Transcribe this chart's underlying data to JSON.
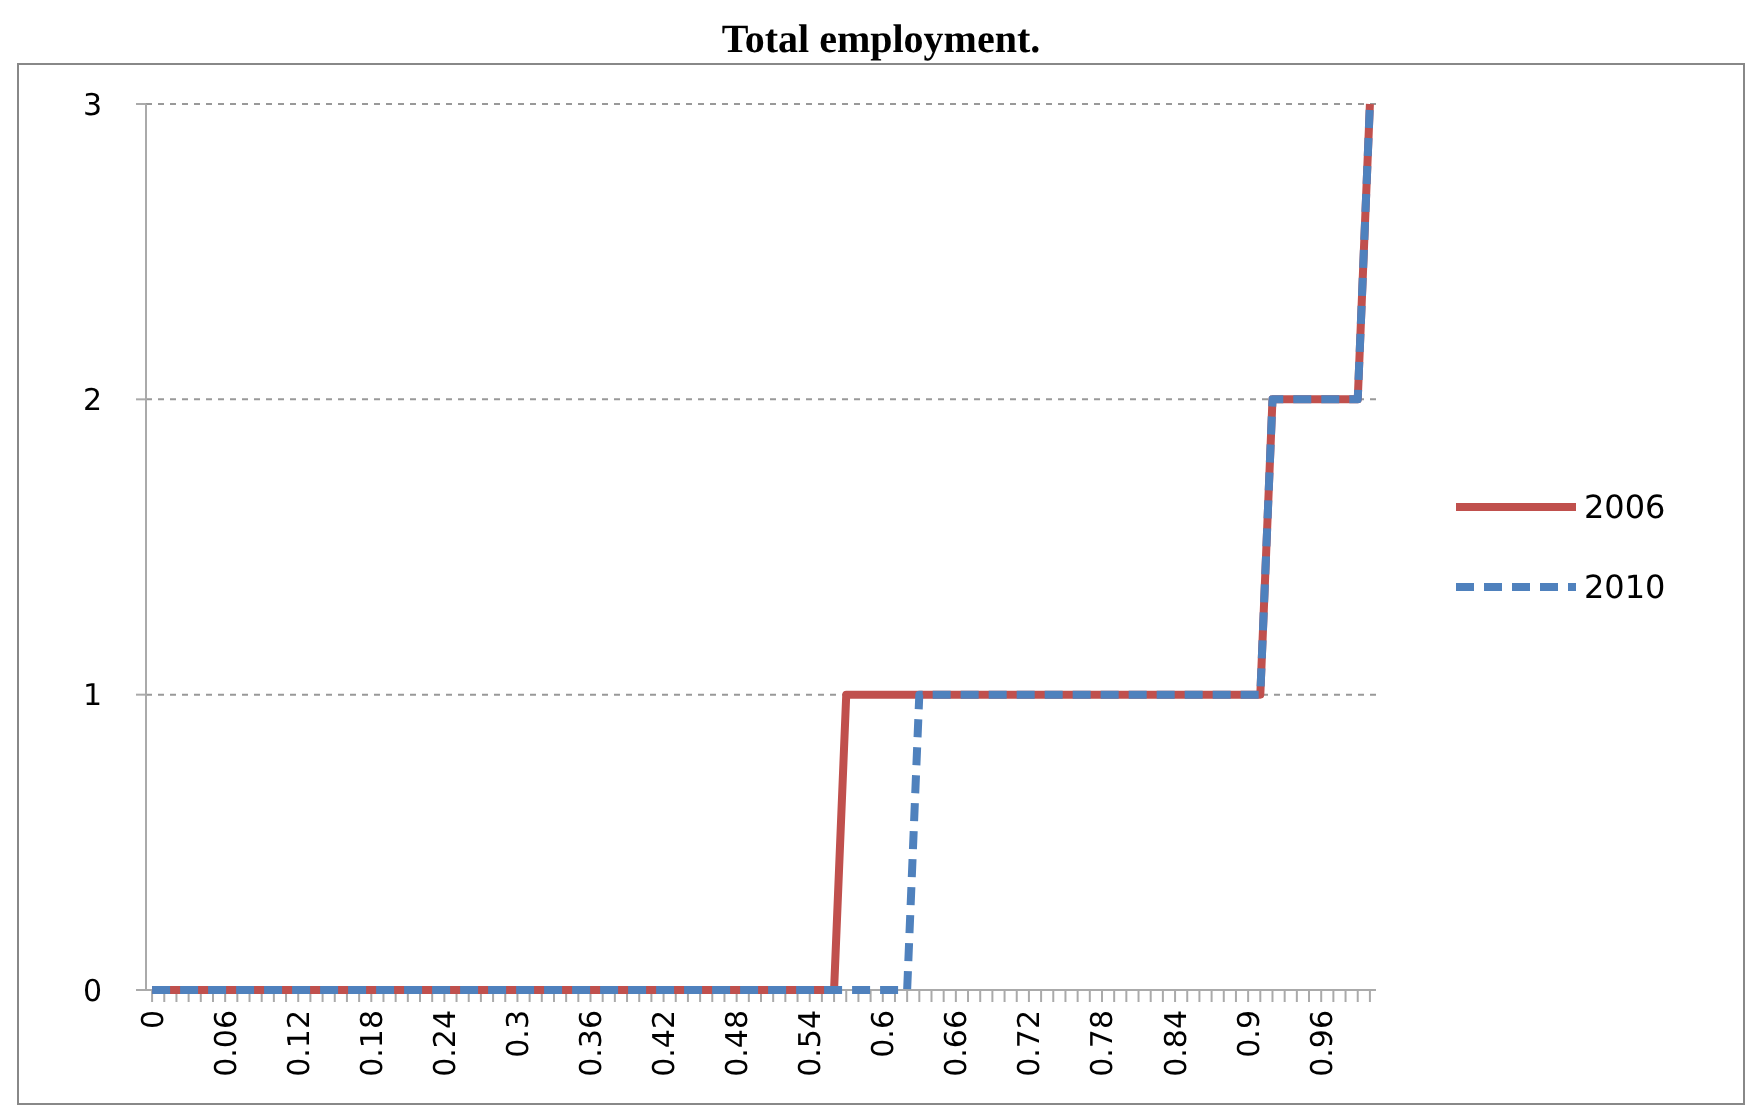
{
  "chart_data": {
    "type": "line",
    "title": "Total employment.",
    "xlim": [
      -0.005,
      1.005
    ],
    "xticks": [
      0,
      {
        "value": 0.01,
        "label": null
      },
      {
        "value": 0.02,
        "label": null
      },
      {
        "value": 0.03,
        "label": null
      },
      {
        "value": 0.04,
        "label": null
      },
      {
        "value": 0.05,
        "label": null
      },
      0.06,
      {
        "value": 0.07,
        "label": null
      },
      {
        "value": 0.08,
        "label": null
      },
      {
        "value": 0.09,
        "label": null
      },
      {
        "value": 0.1,
        "label": null
      },
      {
        "value": 0.11,
        "label": null
      },
      0.12,
      {
        "value": 0.13,
        "label": null
      },
      {
        "value": 0.14,
        "label": null
      },
      {
        "value": 0.15,
        "label": null
      },
      {
        "value": 0.16,
        "label": null
      },
      {
        "value": 0.17,
        "label": null
      },
      0.18,
      {
        "value": 0.19,
        "label": null
      },
      {
        "value": 0.2,
        "label": null
      },
      {
        "value": 0.21,
        "label": null
      },
      {
        "value": 0.22,
        "label": null
      },
      {
        "value": 0.23,
        "label": null
      },
      0.24,
      {
        "value": 0.25,
        "label": null
      },
      {
        "value": 0.26,
        "label": null
      },
      {
        "value": 0.27,
        "label": null
      },
      {
        "value": 0.28,
        "label": null
      },
      {
        "value": 0.29,
        "label": null
      },
      0.3,
      {
        "value": 0.31,
        "label": null
      },
      {
        "value": 0.32,
        "label": null
      },
      {
        "value": 0.33,
        "label": null
      },
      {
        "value": 0.34,
        "label": null
      },
      {
        "value": 0.35,
        "label": null
      },
      0.36,
      {
        "value": 0.37,
        "label": null
      },
      {
        "value": 0.38,
        "label": null
      },
      {
        "value": 0.39,
        "label": null
      },
      {
        "value": 0.4,
        "label": null
      },
      {
        "value": 0.41,
        "label": null
      },
      0.42,
      {
        "value": 0.43,
        "label": null
      },
      {
        "value": 0.44,
        "label": null
      },
      {
        "value": 0.45,
        "label": null
      },
      {
        "value": 0.46,
        "label": null
      },
      {
        "value": 0.47,
        "label": null
      },
      0.48,
      {
        "value": 0.49,
        "label": null
      },
      {
        "value": 0.5,
        "label": null
      },
      {
        "value": 0.51,
        "label": null
      },
      {
        "value": 0.52,
        "label": null
      },
      {
        "value": 0.53,
        "label": null
      },
      0.54,
      {
        "value": 0.55,
        "label": null
      },
      {
        "value": 0.56,
        "label": null
      },
      {
        "value": 0.57,
        "label": null
      },
      {
        "value": 0.58,
        "label": null
      },
      {
        "value": 0.59,
        "label": null
      },
      0.6,
      {
        "value": 0.61,
        "label": null
      },
      {
        "value": 0.62,
        "label": null
      },
      {
        "value": 0.63,
        "label": null
      },
      {
        "value": 0.64,
        "label": null
      },
      {
        "value": 0.65,
        "label": null
      },
      0.66,
      {
        "value": 0.67,
        "label": null
      },
      {
        "value": 0.68,
        "label": null
      },
      {
        "value": 0.69,
        "label": null
      },
      {
        "value": 0.7,
        "label": null
      },
      {
        "value": 0.71,
        "label": null
      },
      0.72,
      {
        "value": 0.73,
        "label": null
      },
      {
        "value": 0.74,
        "label": null
      },
      {
        "value": 0.75,
        "label": null
      },
      {
        "value": 0.76,
        "label": null
      },
      {
        "value": 0.77,
        "label": null
      },
      0.78,
      {
        "value": 0.79,
        "label": null
      },
      {
        "value": 0.8,
        "label": null
      },
      {
        "value": 0.81,
        "label": null
      },
      {
        "value": 0.82,
        "label": null
      },
      {
        "value": 0.83,
        "label": null
      },
      0.84,
      {
        "value": 0.85,
        "label": null
      },
      {
        "value": 0.86,
        "label": null
      },
      {
        "value": 0.87,
        "label": null
      },
      {
        "value": 0.88,
        "label": null
      },
      {
        "value": 0.89,
        "label": null
      },
      0.9,
      {
        "value": 0.91,
        "label": null
      },
      {
        "value": 0.92,
        "label": null
      },
      {
        "value": 0.93,
        "label": null
      },
      {
        "value": 0.94,
        "label": null
      },
      {
        "value": 0.95,
        "label": null
      },
      0.96,
      {
        "value": 0.97,
        "label": null
      },
      {
        "value": 0.98,
        "label": null
      },
      {
        "value": 0.99,
        "label": null
      },
      {
        "value": 1,
        "label": null
      }
    ],
    "ylim": [
      0,
      3
    ],
    "yticks": [
      0,
      1,
      2,
      3
    ],
    "grid": "y",
    "legend": "right",
    "marker": "none",
    "series": [
      {
        "name": "2006",
        "color": "#c0504d",
        "line_style": "solid",
        "x": [
          0,
          0.56,
          0.57,
          0.91,
          0.92,
          0.99,
          1
        ],
        "values": [
          0,
          0,
          1,
          1,
          2,
          2,
          3
        ]
      },
      {
        "name": "2010",
        "color": "#4f81bd",
        "line_style": "dashed",
        "x": [
          0,
          0.62,
          0.63,
          0.91,
          0.92,
          0.99,
          1
        ],
        "values": [
          0,
          0,
          1,
          1,
          2,
          2,
          3
        ]
      }
    ]
  }
}
